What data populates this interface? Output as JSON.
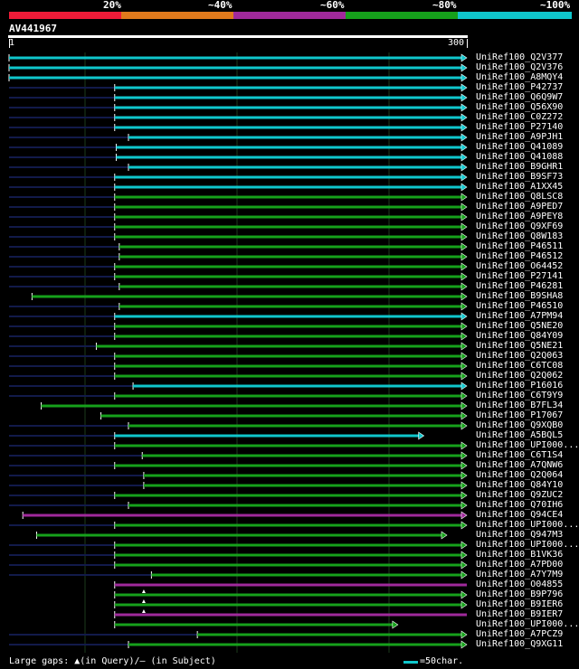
{
  "legend": {
    "segments": [
      {
        "label": "20%",
        "color": "#ef1b38"
      },
      {
        "label": "~40%",
        "color": "#e07a1c"
      },
      {
        "label": "~60%",
        "color": "#a0299b"
      },
      {
        "label": "~80%",
        "color": "#16a11b"
      },
      {
        "label": "~100%",
        "color": "#0fc6cc"
      }
    ]
  },
  "query": {
    "id": "AV441967",
    "start_label": "1",
    "end_label": "300",
    "length": 300
  },
  "hits": [
    {
      "name": "UniRef100_Q2V377",
      "start": 1,
      "end": 300,
      "identity": 100,
      "line_start": 1,
      "arrow": true
    },
    {
      "name": "UniRef100_Q2V376",
      "start": 1,
      "end": 300,
      "identity": 100,
      "line_start": 1,
      "arrow": true
    },
    {
      "name": "UniRef100_A8MQY4",
      "start": 1,
      "end": 300,
      "identity": 100,
      "line_start": 1,
      "arrow": true
    },
    {
      "name": "UniRef100_P42737",
      "start": 70,
      "end": 300,
      "identity": 100,
      "line_start": 1,
      "arrow": true
    },
    {
      "name": "UniRef100_Q6Q9W7",
      "start": 70,
      "end": 300,
      "identity": 100,
      "line_start": 1,
      "arrow": true
    },
    {
      "name": "UniRef100_Q56X90",
      "start": 70,
      "end": 300,
      "identity": 100,
      "line_start": 1,
      "arrow": true
    },
    {
      "name": "UniRef100_C0Z272",
      "start": 70,
      "end": 300,
      "identity": 100,
      "line_start": 1,
      "arrow": true
    },
    {
      "name": "UniRef100_P27140",
      "start": 70,
      "end": 300,
      "identity": 100,
      "line_start": 1,
      "arrow": true
    },
    {
      "name": "UniRef100_A9PJH1",
      "start": 79,
      "end": 300,
      "identity": 100,
      "line_start": 1,
      "arrow": true
    },
    {
      "name": "UniRef100_Q41089",
      "start": 71,
      "end": 300,
      "identity": 100,
      "line_start": 1,
      "arrow": true
    },
    {
      "name": "UniRef100_Q41088",
      "start": 71,
      "end": 300,
      "identity": 100,
      "line_start": 1,
      "arrow": true
    },
    {
      "name": "UniRef100_B9GHR1",
      "start": 79,
      "end": 300,
      "identity": 100,
      "line_start": 1,
      "arrow": true
    },
    {
      "name": "UniRef100_B9SF73",
      "start": 70,
      "end": 300,
      "identity": 100,
      "line_start": 1,
      "arrow": true
    },
    {
      "name": "UniRef100_A1XX45",
      "start": 70,
      "end": 300,
      "identity": 100,
      "line_start": 1,
      "arrow": true
    },
    {
      "name": "UniRef100_Q8LSC8",
      "start": 70,
      "end": 300,
      "identity": 80,
      "line_start": 1,
      "arrow": true
    },
    {
      "name": "UniRef100_A9PED7",
      "start": 70,
      "end": 300,
      "identity": 80,
      "line_start": 1,
      "arrow": true
    },
    {
      "name": "UniRef100_A9PEY8",
      "start": 70,
      "end": 300,
      "identity": 80,
      "line_start": 1,
      "arrow": true
    },
    {
      "name": "UniRef100_Q9XF69",
      "start": 70,
      "end": 300,
      "identity": 80,
      "line_start": 1,
      "arrow": true
    },
    {
      "name": "UniRef100_Q8W183",
      "start": 70,
      "end": 300,
      "identity": 80,
      "line_start": 1,
      "arrow": true
    },
    {
      "name": "UniRef100_P46511",
      "start": 73,
      "end": 300,
      "identity": 80,
      "line_start": 1,
      "arrow": true
    },
    {
      "name": "UniRef100_P46512",
      "start": 73,
      "end": 300,
      "identity": 80,
      "line_start": 1,
      "arrow": true
    },
    {
      "name": "UniRef100_O64452",
      "start": 70,
      "end": 300,
      "identity": 80,
      "line_start": 1,
      "arrow": true
    },
    {
      "name": "UniRef100_P27141",
      "start": 70,
      "end": 300,
      "identity": 80,
      "line_start": 1,
      "arrow": true
    },
    {
      "name": "UniRef100_P46281",
      "start": 73,
      "end": 300,
      "identity": 80,
      "line_start": 1,
      "arrow": true
    },
    {
      "name": "UniRef100_B9SHA8",
      "start": 16,
      "end": 300,
      "identity": 80,
      "line_start": 16,
      "arrow": true
    },
    {
      "name": "UniRef100_P46510",
      "start": 73,
      "end": 300,
      "identity": 80,
      "line_start": 1,
      "arrow": true
    },
    {
      "name": "UniRef100_A7PM94",
      "start": 70,
      "end": 300,
      "identity": 100,
      "line_start": 1,
      "arrow": true
    },
    {
      "name": "UniRef100_Q5NE20",
      "start": 70,
      "end": 300,
      "identity": 80,
      "line_start": 1,
      "arrow": true
    },
    {
      "name": "UniRef100_Q84Y09",
      "start": 70,
      "end": 300,
      "identity": 80,
      "line_start": 1,
      "arrow": true
    },
    {
      "name": "UniRef100_Q5NE21",
      "start": 58,
      "end": 300,
      "identity": 80,
      "line_start": 1,
      "arrow": true
    },
    {
      "name": "UniRef100_Q2Q063",
      "start": 70,
      "end": 300,
      "identity": 80,
      "line_start": 1,
      "arrow": true
    },
    {
      "name": "UniRef100_C6TC08",
      "start": 70,
      "end": 300,
      "identity": 80,
      "line_start": 1,
      "arrow": true
    },
    {
      "name": "UniRef100_Q2Q062",
      "start": 70,
      "end": 300,
      "identity": 80,
      "line_start": 1,
      "arrow": true
    },
    {
      "name": "UniRef100_P16016",
      "start": 82,
      "end": 300,
      "identity": 100,
      "line_start": 1,
      "arrow": true
    },
    {
      "name": "UniRef100_C6T9Y9",
      "start": 70,
      "end": 300,
      "identity": 80,
      "line_start": 1,
      "arrow": true
    },
    {
      "name": "UniRef100_B7FL34",
      "start": 22,
      "end": 300,
      "identity": 80,
      "line_start": 22,
      "arrow": true
    },
    {
      "name": "UniRef100_P17067",
      "start": 61,
      "end": 300,
      "identity": 80,
      "line_start": 61,
      "arrow": true
    },
    {
      "name": "UniRef100_Q9XQB0",
      "start": 79,
      "end": 300,
      "identity": 80,
      "line_start": 1,
      "arrow": true
    },
    {
      "name": "UniRef100_A5BQL5",
      "start": 70,
      "end": 272,
      "identity": 100,
      "line_start": 1,
      "arrow": true
    },
    {
      "name": "UniRef100_UPI000...",
      "start": 70,
      "end": 300,
      "identity": 80,
      "line_start": 1,
      "arrow": true
    },
    {
      "name": "UniRef100_C6T1S4",
      "start": 88,
      "end": 300,
      "identity": 80,
      "line_start": 1,
      "arrow": true
    },
    {
      "name": "UniRef100_A7QNW6",
      "start": 70,
      "end": 300,
      "identity": 80,
      "line_start": 1,
      "arrow": true
    },
    {
      "name": "UniRef100_Q2Q064",
      "start": 89,
      "end": 300,
      "identity": 80,
      "line_start": 1,
      "arrow": true
    },
    {
      "name": "UniRef100_Q84Y10",
      "start": 89,
      "end": 300,
      "identity": 80,
      "line_start": 1,
      "arrow": true
    },
    {
      "name": "UniRef100_Q9ZUC2",
      "start": 70,
      "end": 300,
      "identity": 80,
      "line_start": 1,
      "arrow": true
    },
    {
      "name": "UniRef100_Q70IH6",
      "start": 79,
      "end": 300,
      "identity": 80,
      "line_start": 1,
      "arrow": true
    },
    {
      "name": "UniRef100_Q94CE4",
      "start": 10,
      "end": 300,
      "identity": 60,
      "line_start": 10,
      "arrow": true
    },
    {
      "name": "UniRef100_UPI000...",
      "start": 70,
      "end": 300,
      "identity": 80,
      "line_start": 1,
      "arrow": true
    },
    {
      "name": "UniRef100_Q947M3",
      "start": 19,
      "end": 287,
      "identity": 80,
      "line_start": 19,
      "arrow": true
    },
    {
      "name": "UniRef100_UPI000...",
      "start": 70,
      "end": 300,
      "identity": 80,
      "line_start": 1,
      "arrow": true
    },
    {
      "name": "UniRef100_B1VK36",
      "start": 70,
      "end": 300,
      "identity": 80,
      "line_start": 1,
      "arrow": true
    },
    {
      "name": "UniRef100_A7PD00",
      "start": 70,
      "end": 300,
      "identity": 80,
      "line_start": 1,
      "arrow": true
    },
    {
      "name": "UniRef100_A7Y7M9",
      "start": 94,
      "end": 300,
      "identity": 80,
      "line_start": 1,
      "arrow": true
    },
    {
      "name": "UniRef100_O04855",
      "start": 70,
      "end": 300,
      "identity": 60,
      "line_start": 70,
      "arrow": false
    },
    {
      "name": "UniRef100_B9P796",
      "start": 70,
      "end": 300,
      "identity": 80,
      "line_start": 70,
      "arrow": true,
      "gap": 89
    },
    {
      "name": "UniRef100_B9IER6",
      "start": 70,
      "end": 300,
      "identity": 80,
      "line_start": 70,
      "arrow": true,
      "gap": 89
    },
    {
      "name": "UniRef100_B9IER7",
      "start": 70,
      "end": 300,
      "identity": 60,
      "line_start": 70,
      "arrow": false,
      "gap": 89
    },
    {
      "name": "UniRef100_UPI000...",
      "start": 70,
      "end": 255,
      "identity": 80,
      "line_start": 70,
      "arrow": true
    },
    {
      "name": "UniRef100_A7PCZ9",
      "start": 124,
      "end": 300,
      "identity": 80,
      "line_start": 1,
      "arrow": true
    },
    {
      "name": "UniRef100_Q9XG11",
      "start": 79,
      "end": 300,
      "identity": 80,
      "line_start": 1,
      "arrow": true
    }
  ],
  "footer": {
    "gaps_note": "Large gaps: ▲(in Query)/— (in Subject)",
    "scale_note": "=50char."
  }
}
